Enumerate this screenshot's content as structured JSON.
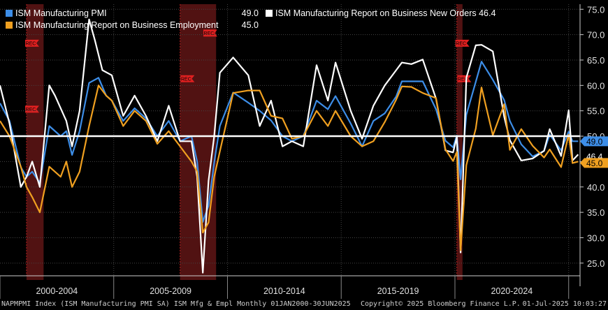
{
  "legend": {
    "pmi": {
      "label": "ISM Manufacturing PMI",
      "value": "49.0",
      "color": "#3d8ee8"
    },
    "employment": {
      "label": "ISM Manufacturing Report on Business Employment",
      "value": "45.0",
      "color": "#f0a020"
    },
    "new_orders": {
      "label": "ISM Manufacturing Report on Business New Orders",
      "value": "46.4",
      "color": "#ffffff"
    }
  },
  "footer": {
    "left": "NAPMPMI Index (ISM Manufacturing PMI SA) ISM Mfg & Empl  Monthly 01JAN2000-30JUN2025",
    "copyright": "Copyright© 2025 Bloomberg Finance L.P.",
    "timestamp": "01-Jul-2025 10:03:27"
  },
  "chart_data": {
    "type": "line",
    "x_range": [
      "2000-01",
      "2025-06"
    ],
    "ylim": [
      22.5,
      76
    ],
    "y_ticks": [
      "25.0",
      "30.0",
      "35.0",
      "40.0",
      "45.0",
      "50.0",
      "55.0",
      "60.0",
      "65.0",
      "70.0",
      "75.0"
    ],
    "x_ticks": [
      "2000-2004",
      "2005-2009",
      "2010-2014",
      "2015-2019",
      "2020-2024"
    ],
    "reference_line": 50,
    "recession_label": "REC",
    "recessions": [
      [
        "2001-03",
        "2001-11"
      ],
      [
        "2007-12",
        "2009-06"
      ],
      [
        "2020-02",
        "2020-04"
      ]
    ],
    "last_value_tags": [
      {
        "text": "49.0",
        "value": 49.0,
        "color": "#3d8ee8"
      },
      {
        "text": "46.4",
        "value": 46.4,
        "color": "#ffffff"
      },
      {
        "text": "45.0",
        "value": 45.0,
        "color": "#f0a020"
      }
    ],
    "series": [
      {
        "name": "ISM Manufacturing PMI",
        "color": "#3d8ee8",
        "points": [
          [
            "2000-01",
            56.5
          ],
          [
            "2000-06",
            53.0
          ],
          [
            "2000-12",
            43.9
          ],
          [
            "2001-03",
            42.0
          ],
          [
            "2001-06",
            43.0
          ],
          [
            "2001-10",
            40.8
          ],
          [
            "2002-03",
            52.0
          ],
          [
            "2002-09",
            50.0
          ],
          [
            "2002-12",
            51.0
          ],
          [
            "2003-03",
            46.3
          ],
          [
            "2003-07",
            51.0
          ],
          [
            "2003-12",
            60.5
          ],
          [
            "2004-05",
            61.5
          ],
          [
            "2004-09",
            58.0
          ],
          [
            "2004-12",
            57.0
          ],
          [
            "2005-06",
            53.0
          ],
          [
            "2005-12",
            55.5
          ],
          [
            "2006-06",
            53.5
          ],
          [
            "2006-12",
            50.0
          ],
          [
            "2007-06",
            53.0
          ],
          [
            "2007-12",
            49.0
          ],
          [
            "2008-06",
            50.0
          ],
          [
            "2008-09",
            45.0
          ],
          [
            "2008-12",
            33.1
          ],
          [
            "2009-03",
            36.3
          ],
          [
            "2009-06",
            44.8
          ],
          [
            "2009-09",
            52.0
          ],
          [
            "2010-04",
            58.6
          ],
          [
            "2010-12",
            56.6
          ],
          [
            "2011-06",
            55.0
          ],
          [
            "2011-12",
            53.1
          ],
          [
            "2012-06",
            50.0
          ],
          [
            "2012-11",
            49.0
          ],
          [
            "2013-05",
            50.0
          ],
          [
            "2013-12",
            57.0
          ],
          [
            "2014-06",
            55.3
          ],
          [
            "2014-10",
            57.9
          ],
          [
            "2015-06",
            52.5
          ],
          [
            "2015-12",
            48.0
          ],
          [
            "2016-06",
            53.0
          ],
          [
            "2016-12",
            54.5
          ],
          [
            "2017-06",
            57.8
          ],
          [
            "2017-09",
            60.8
          ],
          [
            "2018-02",
            60.8
          ],
          [
            "2018-08",
            60.8
          ],
          [
            "2019-03",
            55.3
          ],
          [
            "2019-08",
            49.1
          ],
          [
            "2019-12",
            47.8
          ],
          [
            "2020-02",
            50.1
          ],
          [
            "2020-04",
            41.5
          ],
          [
            "2020-07",
            54.2
          ],
          [
            "2020-12",
            60.7
          ],
          [
            "2021-03",
            64.7
          ],
          [
            "2021-09",
            61.1
          ],
          [
            "2022-03",
            57.1
          ],
          [
            "2022-06",
            53.0
          ],
          [
            "2022-12",
            48.4
          ],
          [
            "2023-06",
            46.0
          ],
          [
            "2023-12",
            47.1
          ],
          [
            "2024-03",
            50.3
          ],
          [
            "2024-09",
            47.2
          ],
          [
            "2025-01",
            50.9
          ],
          [
            "2025-03",
            49.0
          ],
          [
            "2025-06",
            49.0
          ]
        ]
      },
      {
        "name": "ISM Manufacturing Report on Business New Orders",
        "color": "#ffffff",
        "points": [
          [
            "2000-01",
            60.0
          ],
          [
            "2000-06",
            52.5
          ],
          [
            "2000-12",
            40.0
          ],
          [
            "2001-03",
            42.0
          ],
          [
            "2001-06",
            45.0
          ],
          [
            "2001-10",
            40.0
          ],
          [
            "2002-03",
            60.0
          ],
          [
            "2002-06",
            58.0
          ],
          [
            "2002-12",
            53.0
          ],
          [
            "2003-03",
            48.0
          ],
          [
            "2003-07",
            55.0
          ],
          [
            "2003-12",
            73.0
          ],
          [
            "2004-03",
            69.0
          ],
          [
            "2004-07",
            63.0
          ],
          [
            "2004-12",
            62.0
          ],
          [
            "2005-06",
            54.0
          ],
          [
            "2005-12",
            58.0
          ],
          [
            "2006-06",
            54.0
          ],
          [
            "2006-12",
            49.0
          ],
          [
            "2007-06",
            56.0
          ],
          [
            "2007-12",
            49.0
          ],
          [
            "2008-06",
            49.0
          ],
          [
            "2008-09",
            42.0
          ],
          [
            "2008-12",
            23.1
          ],
          [
            "2009-03",
            41.2
          ],
          [
            "2009-06",
            50.0
          ],
          [
            "2009-09",
            62.5
          ],
          [
            "2010-04",
            65.5
          ],
          [
            "2010-12",
            62.0
          ],
          [
            "2011-06",
            52.0
          ],
          [
            "2011-12",
            57.0
          ],
          [
            "2012-06",
            48.0
          ],
          [
            "2012-11",
            49.0
          ],
          [
            "2013-05",
            48.0
          ],
          [
            "2013-12",
            64.0
          ],
          [
            "2014-06",
            57.0
          ],
          [
            "2014-10",
            64.5
          ],
          [
            "2015-06",
            55.0
          ],
          [
            "2015-12",
            49.5
          ],
          [
            "2016-06",
            56.0
          ],
          [
            "2016-12",
            60.0
          ],
          [
            "2017-06",
            63.0
          ],
          [
            "2017-09",
            64.5
          ],
          [
            "2018-02",
            64.2
          ],
          [
            "2018-08",
            65.1
          ],
          [
            "2019-03",
            57.4
          ],
          [
            "2019-08",
            47.2
          ],
          [
            "2019-12",
            46.8
          ],
          [
            "2020-02",
            49.8
          ],
          [
            "2020-04",
            27.1
          ],
          [
            "2020-07",
            61.5
          ],
          [
            "2020-12",
            67.9
          ],
          [
            "2021-03",
            68.0
          ],
          [
            "2021-09",
            66.7
          ],
          [
            "2022-03",
            53.8
          ],
          [
            "2022-06",
            49.2
          ],
          [
            "2022-12",
            45.2
          ],
          [
            "2023-06",
            45.6
          ],
          [
            "2023-12",
            47.1
          ],
          [
            "2024-03",
            51.4
          ],
          [
            "2024-09",
            46.1
          ],
          [
            "2025-01",
            55.1
          ],
          [
            "2025-03",
            45.2
          ],
          [
            "2025-06",
            46.4
          ]
        ]
      },
      {
        "name": "ISM Manufacturing Report on Business Employment",
        "color": "#f0a020",
        "points": [
          [
            "2000-01",
            53.0
          ],
          [
            "2000-06",
            50.0
          ],
          [
            "2000-12",
            44.0
          ],
          [
            "2001-03",
            40.0
          ],
          [
            "2001-06",
            38.0
          ],
          [
            "2001-10",
            35.0
          ],
          [
            "2002-03",
            44.0
          ],
          [
            "2002-09",
            42.0
          ],
          [
            "2002-12",
            45.0
          ],
          [
            "2003-03",
            40.0
          ],
          [
            "2003-07",
            43.0
          ],
          [
            "2003-12",
            52.0
          ],
          [
            "2004-05",
            60.0
          ],
          [
            "2004-09",
            58.0
          ],
          [
            "2004-12",
            57.0
          ],
          [
            "2005-06",
            52.0
          ],
          [
            "2005-12",
            55.0
          ],
          [
            "2006-06",
            53.0
          ],
          [
            "2006-12",
            48.5
          ],
          [
            "2007-06",
            51.0
          ],
          [
            "2007-12",
            48.0
          ],
          [
            "2008-06",
            45.0
          ],
          [
            "2008-09",
            43.0
          ],
          [
            "2008-12",
            31.0
          ],
          [
            "2009-03",
            33.0
          ],
          [
            "2009-06",
            42.0
          ],
          [
            "2009-09",
            47.0
          ],
          [
            "2010-04",
            58.5
          ],
          [
            "2010-12",
            59.0
          ],
          [
            "2011-06",
            59.0
          ],
          [
            "2011-12",
            54.0
          ],
          [
            "2012-06",
            53.5
          ],
          [
            "2012-11",
            49.5
          ],
          [
            "2013-05",
            50.0
          ],
          [
            "2013-12",
            55.0
          ],
          [
            "2014-06",
            52.0
          ],
          [
            "2014-10",
            55.0
          ],
          [
            "2015-06",
            50.0
          ],
          [
            "2015-12",
            48.0
          ],
          [
            "2016-06",
            49.0
          ],
          [
            "2016-12",
            52.8
          ],
          [
            "2017-06",
            57.2
          ],
          [
            "2017-09",
            59.8
          ],
          [
            "2018-02",
            59.7
          ],
          [
            "2018-08",
            58.5
          ],
          [
            "2019-03",
            57.5
          ],
          [
            "2019-08",
            47.4
          ],
          [
            "2019-12",
            45.1
          ],
          [
            "2020-02",
            46.9
          ],
          [
            "2020-04",
            27.5
          ],
          [
            "2020-07",
            44.3
          ],
          [
            "2020-12",
            51.5
          ],
          [
            "2021-03",
            59.6
          ],
          [
            "2021-09",
            50.2
          ],
          [
            "2022-03",
            56.3
          ],
          [
            "2022-06",
            47.3
          ],
          [
            "2022-12",
            51.4
          ],
          [
            "2023-06",
            48.1
          ],
          [
            "2023-12",
            45.8
          ],
          [
            "2024-03",
            47.4
          ],
          [
            "2024-09",
            43.9
          ],
          [
            "2025-01",
            50.3
          ],
          [
            "2025-03",
            44.7
          ],
          [
            "2025-06",
            45.0
          ]
        ]
      }
    ]
  }
}
